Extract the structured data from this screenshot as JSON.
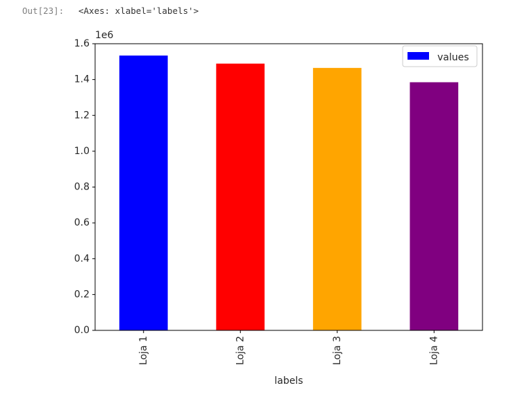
{
  "cell": {
    "prompt": "Out[23]:",
    "output_text": "<Axes: xlabel='labels'>"
  },
  "chart_data": {
    "type": "bar",
    "categories": [
      "Loja 1",
      "Loja 2",
      "Loja 3",
      "Loja 4"
    ],
    "values": [
      1534000,
      1489000,
      1465000,
      1385000
    ],
    "colors": [
      "#0000ff",
      "#ff0000",
      "#ffa500",
      "#800080"
    ],
    "xlabel": "labels",
    "ylabel": "",
    "ylim": [
      0,
      1600000
    ],
    "yticks": [
      "0.0",
      "0.2",
      "0.4",
      "0.6",
      "0.8",
      "1.0",
      "1.2",
      "1.4",
      "1.6"
    ],
    "y_offset_text": "1e6",
    "legend": {
      "label": "values",
      "color": "#0000ff",
      "position": "top-right"
    },
    "grid": false
  }
}
